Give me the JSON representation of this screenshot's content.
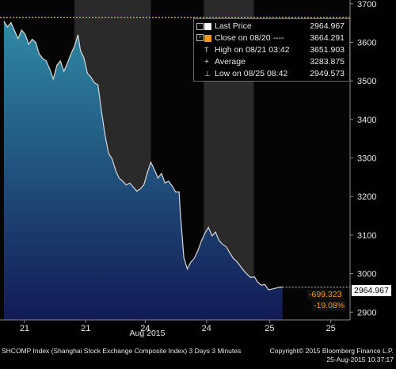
{
  "chart_data": {
    "type": "area",
    "title": "",
    "xlabel": "",
    "ylabel": "",
    "ylim": [
      2880,
      3710
    ],
    "y_ticks": [
      2900,
      3000,
      3100,
      3200,
      3300,
      3400,
      3500,
      3600,
      3700
    ],
    "x_ticks": [
      "21",
      "21",
      "24",
      "24",
      "25",
      "25"
    ],
    "x_month_label": "Aug 2015",
    "grid": false,
    "colors": {
      "line": "#d9d9d9",
      "fill_top": "#2f8aa4",
      "fill_bottom": "#121a55",
      "close_line": "#f2961e",
      "tag": "#f2961e"
    },
    "series": [
      {
        "name": "Last Price",
        "x": [
          0,
          0.012,
          0.024,
          0.036,
          0.048,
          0.06,
          0.072,
          0.084,
          0.096,
          0.108,
          0.12,
          0.132,
          0.144,
          0.156,
          0.168,
          0.18,
          0.192,
          0.204,
          0.216,
          0.228,
          0.24,
          0.252,
          0.26,
          0.272,
          0.284,
          0.296,
          0.308,
          0.32,
          0.332,
          0.344,
          0.356,
          0.368,
          0.38,
          0.392,
          0.404,
          0.416,
          0.428,
          0.44,
          0.452,
          0.464,
          0.476,
          0.488,
          0.5,
          0.512,
          0.524,
          0.536,
          0.548,
          0.56,
          0.572,
          0.584,
          0.596,
          0.6,
          0.612,
          0.624,
          0.636,
          0.648,
          0.66,
          0.672,
          0.684,
          0.696,
          0.708,
          0.72,
          0.732,
          0.744,
          0.756,
          0.768,
          0.78,
          0.792,
          0.804,
          0.816,
          0.828,
          0.84,
          0.852,
          0.864,
          0.876,
          0.888,
          0.9,
          0.912,
          0.924,
          0.936,
          0.948
        ],
        "values": [
          3655,
          3640,
          3651,
          3630,
          3610,
          3632,
          3621,
          3595,
          3608,
          3600,
          3570,
          3558,
          3552,
          3530,
          3505,
          3540,
          3552,
          3525,
          3546,
          3570,
          3590,
          3620,
          3580,
          3560,
          3520,
          3510,
          3495,
          3490,
          3420,
          3360,
          3312,
          3298,
          3268,
          3248,
          3240,
          3230,
          3235,
          3225,
          3214,
          3220,
          3230,
          3262,
          3289,
          3270,
          3248,
          3260,
          3235,
          3240,
          3228,
          3212,
          3212,
          3160,
          3042,
          3012,
          3030,
          3040,
          3060,
          3085,
          3105,
          3120,
          3098,
          3108,
          3086,
          3076,
          3070,
          3055,
          3040,
          3032,
          3020,
          3008,
          2998,
          2990,
          2992,
          2978,
          2970,
          2972,
          2958,
          2960,
          2962,
          2965,
          2964.967
        ]
      }
    ],
    "close_value": 3664.291,
    "legend": {
      "placement": "top-right",
      "entries": [
        {
          "label": "Last Price",
          "value": "2964.967",
          "swatch": "#ffffff"
        },
        {
          "label": "Close on 08/20 ----",
          "value": "3664.291",
          "swatch": "#f2961e"
        },
        {
          "label": "High on 08/21 03:42",
          "value": "3651.903",
          "icon": "T"
        },
        {
          "label": "Average",
          "value": "3283.875",
          "icon": "+"
        },
        {
          "label": "Low on 08/25 08:42",
          "value": "2949.573",
          "icon": "⊥"
        }
      ]
    },
    "last_price_tag": "2964.967",
    "change_abs": "-699.323",
    "change_pct": "-19.08%"
  },
  "footer": {
    "left": "SHCOMP Index (Shanghai Stock Exchange Composite Index) 3 Days 3 Minutes",
    "right": "Copyright© 2015 Bloomberg Finance L.P.",
    "timestamp": "25-Aug-2015 10:37:17"
  }
}
